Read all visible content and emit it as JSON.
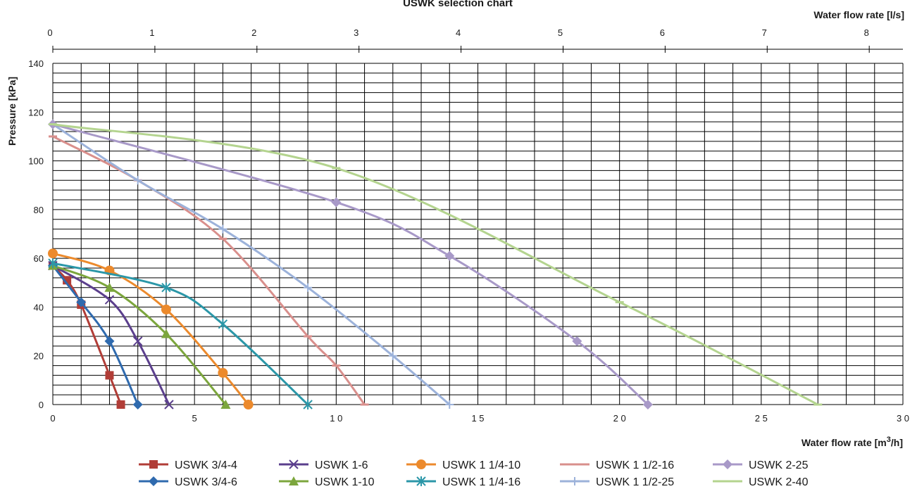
{
  "chart_data": {
    "type": "line",
    "title": "USWK selection chart",
    "xlabel": "Water flow rate [m",
    "xlabel_sup": "3",
    "xlabel_end": "/h]",
    "x2label": "Water flow rate [l/s]",
    "ylabel": "Pressure [kPa]",
    "xlim": [
      0,
      30
    ],
    "ylim": [
      0,
      140
    ],
    "x2lim": [
      0,
      8.33
    ],
    "x_ticks": [
      "0",
      "5",
      "1 0",
      "1 5",
      "2 0",
      "2 5",
      "3 0"
    ],
    "x_tick_values": [
      0,
      5,
      10,
      15,
      20,
      25,
      30
    ],
    "x2_ticks": [
      "0",
      "1",
      "2",
      "3",
      "4",
      "5",
      "6",
      "7",
      "8"
    ],
    "x2_tick_values": [
      0,
      1,
      2,
      3,
      4,
      5,
      6,
      7,
      8
    ],
    "y_ticks": [
      "0",
      "20",
      "40",
      "60",
      "80",
      "100",
      "120",
      "140"
    ],
    "y_tick_values": [
      0,
      20,
      40,
      60,
      80,
      100,
      120,
      140
    ],
    "grid": true,
    "legend_position": "bottom",
    "series": [
      {
        "name": "USWK 3/4-4",
        "color": "#b13d37",
        "marker": "square",
        "x": [
          0,
          0.5,
          1.0,
          2.0,
          2.4
        ],
        "y": [
          57,
          51,
          41,
          12,
          0
        ]
      },
      {
        "name": "USWK 3/4-6",
        "color": "#2f6aae",
        "marker": "diamond",
        "x": [
          0,
          1.0,
          2.0,
          3.0
        ],
        "y": [
          57,
          42,
          26,
          0
        ]
      },
      {
        "name": "USWK 1-6",
        "color": "#5b3f8d",
        "marker": "x",
        "x": [
          0,
          2.0,
          3.0,
          4.1
        ],
        "y": [
          57,
          43,
          26,
          0
        ]
      },
      {
        "name": "USWK 1-10",
        "color": "#7ca63d",
        "marker": "triangle",
        "x": [
          0,
          2.0,
          4.0,
          6.1
        ],
        "y": [
          57,
          48,
          29,
          0
        ]
      },
      {
        "name": "USWK 1 1/4-10",
        "color": "#ec8a2c",
        "marker": "circle",
        "x": [
          0,
          2.0,
          4.0,
          6.0,
          6.9
        ],
        "y": [
          62,
          55,
          39,
          13,
          0
        ]
      },
      {
        "name": "USWK 1 1/4-16",
        "color": "#2b97a8",
        "marker": "asterisk",
        "x": [
          0,
          4.0,
          6.0,
          9.0
        ],
        "y": [
          58,
          48,
          33,
          0
        ]
      },
      {
        "name": "USWK 1 1/2-16",
        "color": "#d98f8c",
        "marker": "dash",
        "x": [
          0,
          3.0,
          6.0,
          9.0,
          10.0,
          11.0
        ],
        "y": [
          110,
          92,
          68,
          28,
          16,
          0
        ]
      },
      {
        "name": "USWK 1 1/2-25",
        "color": "#9cb2da",
        "marker": "plus",
        "x": [
          0,
          3.0,
          6.0,
          9.0,
          12.0,
          14.0
        ],
        "y": [
          115,
          92,
          72,
          48,
          20,
          0
        ]
      },
      {
        "name": "USWK 2-25",
        "color": "#a899c8",
        "marker": "diamond",
        "x": [
          0,
          10.0,
          14.0,
          18.5,
          21.0
        ],
        "y": [
          115,
          83,
          61,
          26,
          0
        ]
      },
      {
        "name": "USWK 2-40",
        "color": "#b4d48f",
        "marker": "dash",
        "x": [
          0,
          10.0,
          20.0,
          27.0
        ],
        "y": [
          115,
          97,
          42,
          0
        ]
      }
    ]
  }
}
